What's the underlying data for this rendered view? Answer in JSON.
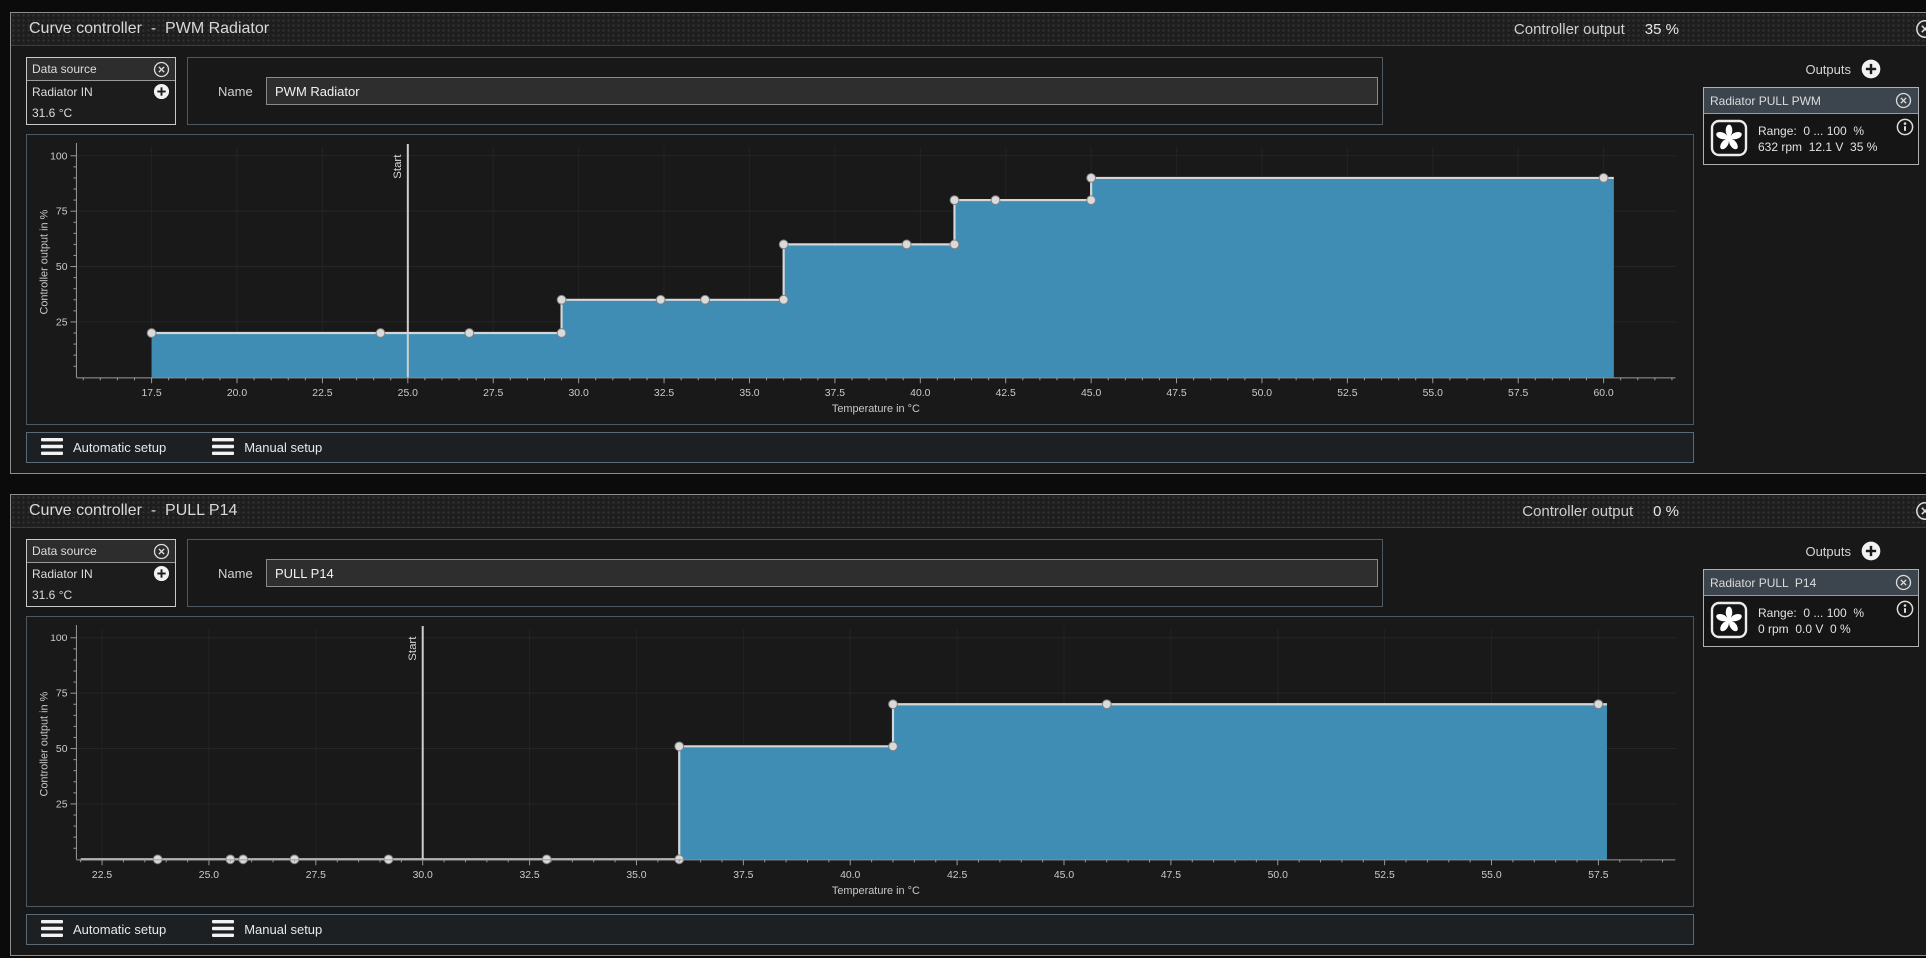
{
  "panels": [
    {
      "title": "Curve controller  -  PWM Radiator",
      "controller_output_label": "Controller output",
      "controller_output_value": "35 %",
      "data_source": {
        "header": "Data source",
        "source": "Radiator IN",
        "value": "31.6 °C"
      },
      "name_label": "Name",
      "name_value": "PWM Radiator",
      "outputs_label": "Outputs",
      "output_box": {
        "title": "Radiator PULL PWM",
        "range": "Range:  0 ... 100  %",
        "status": "632 rpm  12.1 V  35 %"
      },
      "setup": {
        "automatic": "Automatic setup",
        "manual": "Manual setup"
      }
    },
    {
      "title": "Curve controller  -  PULL P14",
      "controller_output_label": "Controller output",
      "controller_output_value": "0 %",
      "data_source": {
        "header": "Data source",
        "source": "Radiator IN",
        "value": "31.6 °C"
      },
      "name_label": "Name",
      "name_value": "PULL P14",
      "outputs_label": "Outputs",
      "output_box": {
        "title": "Radiator PULL  P14",
        "range": "Range:  0 ... 100  %",
        "status": "0 rpm  0.0 V  0 %"
      },
      "setup": {
        "automatic": "Automatic setup",
        "manual": "Manual setup"
      }
    }
  ],
  "chart_data": [
    {
      "type": "area",
      "step": true,
      "xlabel": "Temperature in °C",
      "ylabel": "Controller output in %",
      "xlim": [
        15.3,
        62.1
      ],
      "ylim": [
        0,
        104
      ],
      "x_major_ticks": [
        17.5,
        20.0,
        22.5,
        25.0,
        27.5,
        30.0,
        32.5,
        35.0,
        37.5,
        40.0,
        42.5,
        45.0,
        47.5,
        50.0,
        52.5,
        55.0,
        57.5,
        60.0
      ],
      "x_minor_step": 0.5,
      "y_major_ticks": [
        25,
        50,
        75,
        100
      ],
      "y_minor_step": 5,
      "grid": true,
      "start_marker": {
        "x": 25.0,
        "label": "Start"
      },
      "points": [
        [
          17.5,
          20
        ],
        [
          24.2,
          20
        ],
        [
          26.8,
          20
        ],
        [
          29.5,
          20
        ],
        [
          29.5,
          35
        ],
        [
          32.4,
          35
        ],
        [
          33.7,
          35
        ],
        [
          36.0,
          35
        ],
        [
          36.0,
          60
        ],
        [
          39.6,
          60
        ],
        [
          41.0,
          60
        ],
        [
          41.0,
          80
        ],
        [
          42.2,
          80
        ],
        [
          45.0,
          80
        ],
        [
          45.0,
          90
        ],
        [
          60.0,
          90
        ]
      ],
      "line_extend_x": 60.3,
      "colors": {
        "fill": "#3f8cb4",
        "line": "#d6d6d6",
        "point": "#dadada",
        "axis": "#9a9a9a",
        "grid": "#262626",
        "start": "#cfcfcf"
      }
    },
    {
      "type": "area",
      "step": true,
      "xlabel": "Temperature in °C",
      "ylabel": "Controller output in %",
      "xlim": [
        21.9,
        59.3
      ],
      "ylim": [
        0,
        104
      ],
      "x_major_ticks": [
        22.5,
        25.0,
        27.5,
        30.0,
        32.5,
        35.0,
        37.5,
        40.0,
        42.5,
        45.0,
        47.5,
        50.0,
        52.5,
        55.0,
        57.5
      ],
      "x_minor_step": 0.5,
      "y_major_ticks": [
        25,
        50,
        75,
        100
      ],
      "y_minor_step": 5,
      "grid": true,
      "start_marker": {
        "x": 30.0,
        "label": "Start"
      },
      "line_start_x": 22.0,
      "points": [
        [
          23.8,
          0
        ],
        [
          25.5,
          0
        ],
        [
          25.8,
          0
        ],
        [
          27.0,
          0
        ],
        [
          29.2,
          0
        ],
        [
          32.9,
          0
        ],
        [
          36.0,
          0
        ],
        [
          36.0,
          51
        ],
        [
          41.0,
          51
        ],
        [
          41.0,
          70
        ],
        [
          46.0,
          70
        ],
        [
          57.5,
          70
        ]
      ],
      "line_extend_x": 57.7,
      "colors": {
        "fill": "#3f8cb4",
        "line": "#d6d6d6",
        "point": "#dadada",
        "axis": "#9a9a9a",
        "grid": "#262626",
        "start": "#cfcfcf"
      }
    }
  ]
}
